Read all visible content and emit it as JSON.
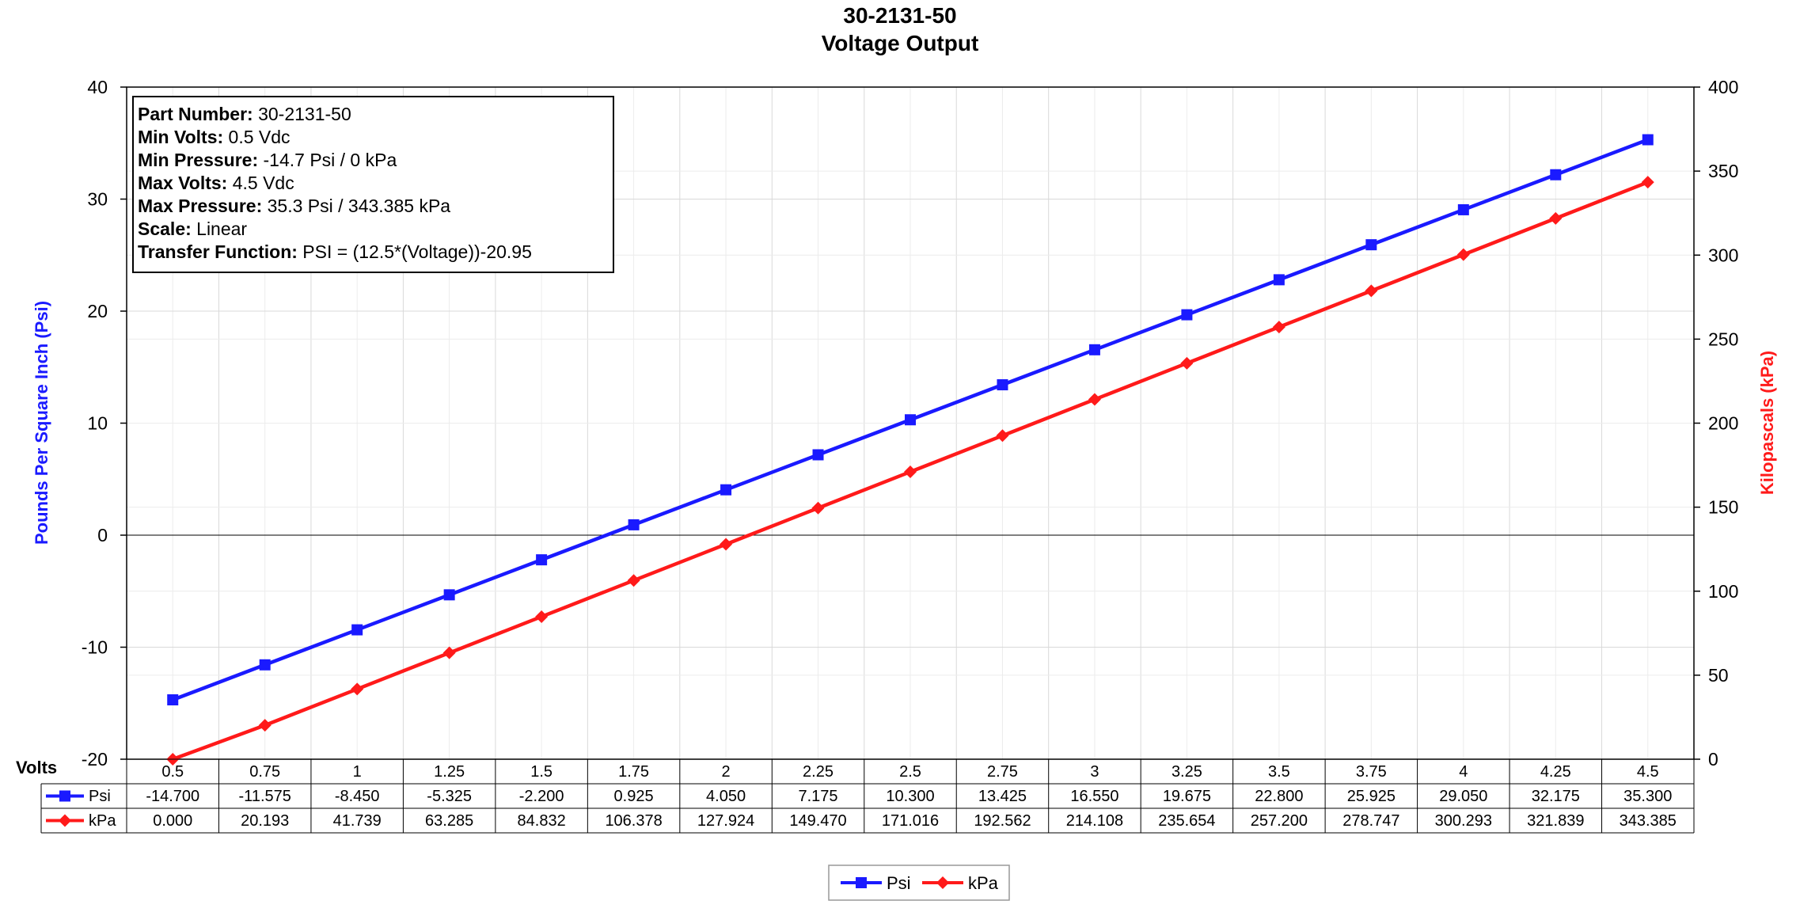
{
  "chart_data": {
    "type": "line",
    "title": "30-2131-50",
    "subtitle": "Voltage Output",
    "xlabel": "Volts",
    "ylabel": "Pounds Per Square Inch (Psi)",
    "y2label": "Kilopascals (kPa)",
    "ylim": [
      -20,
      40
    ],
    "y2lim": [
      0,
      400
    ],
    "yticks": [
      "-20",
      "-10",
      "0",
      "10",
      "20",
      "30",
      "40"
    ],
    "y2ticks": [
      "0",
      "50",
      "100",
      "150",
      "200",
      "250",
      "300",
      "350",
      "400"
    ],
    "categories": [
      "0.5",
      "0.75",
      "1",
      "1.25",
      "1.5",
      "1.75",
      "2",
      "2.25",
      "2.5",
      "2.75",
      "3",
      "3.25",
      "3.5",
      "3.75",
      "4",
      "4.25",
      "4.5"
    ],
    "series": [
      {
        "name": "Psi",
        "axis": "left",
        "color": "#1a1aff",
        "marker": "square",
        "values": [
          -14.7,
          -11.575,
          -8.45,
          -5.325,
          -2.2,
          0.925,
          4.05,
          7.175,
          10.3,
          13.425,
          16.55,
          19.675,
          22.8,
          25.925,
          29.05,
          32.175,
          35.3
        ],
        "labels": [
          "-14.700",
          "-11.575",
          "-8.450",
          "-5.325",
          "-2.200",
          "0.925",
          "4.050",
          "7.175",
          "10.300",
          "13.425",
          "16.550",
          "19.675",
          "22.800",
          "25.925",
          "29.050",
          "32.175",
          "35.300"
        ]
      },
      {
        "name": "kPa",
        "axis": "right",
        "color": "#ff1a1a",
        "marker": "diamond",
        "values": [
          0,
          20.193,
          41.739,
          63.285,
          84.832,
          106.378,
          127.924,
          149.47,
          171.016,
          192.562,
          214.108,
          235.654,
          257.2,
          278.747,
          300.293,
          321.839,
          343.385
        ],
        "labels": [
          "0.000",
          "20.193",
          "41.739",
          "63.285",
          "84.832",
          "106.378",
          "127.924",
          "149.470",
          "171.016",
          "192.562",
          "214.108",
          "235.654",
          "257.200",
          "278.747",
          "300.293",
          "321.839",
          "343.385"
        ]
      }
    ],
    "info_box": [
      {
        "label": "Part Number:",
        "value": " 30-2131-50"
      },
      {
        "label": "Min Volts:",
        "value": " 0.5 Vdc"
      },
      {
        "label": "Min Pressure:",
        "value": " -14.7 Psi / 0 kPa"
      },
      {
        "label": "Max Volts:",
        "value": " 4.5 Vdc"
      },
      {
        "label": "Max Pressure:",
        "value": " 35.3 Psi / 343.385 kPa"
      },
      {
        "label": "Scale:",
        "value": " Linear"
      },
      {
        "label": "Transfer Function:",
        "value": " PSI = (12.5*(Voltage))-20.95"
      }
    ],
    "legend": {
      "position": "bottom"
    },
    "grid": true
  }
}
